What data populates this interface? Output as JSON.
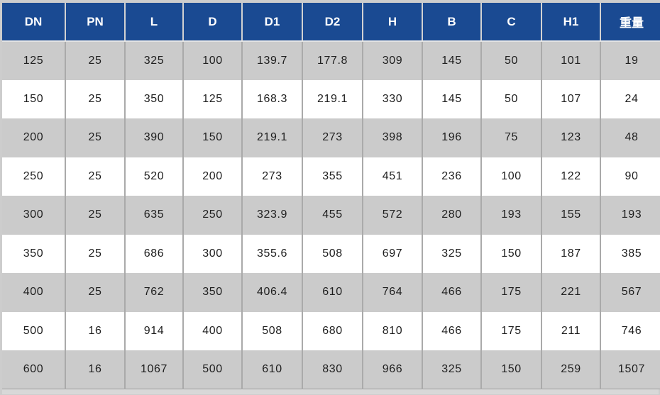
{
  "chart_data": {
    "type": "table",
    "title": "",
    "columns": [
      "DN",
      "PN",
      "L",
      "D",
      "D1",
      "D2",
      "H",
      "B",
      "C",
      "H1",
      "重量"
    ],
    "column_keys": [
      "dn",
      "pn",
      "l",
      "d",
      "d1",
      "d2",
      "h",
      "b",
      "c",
      "h1",
      "weight"
    ],
    "rows": [
      [
        "125",
        "25",
        "325",
        "100",
        "139.7",
        "177.8",
        "309",
        "145",
        "50",
        "101",
        "19"
      ],
      [
        "150",
        "25",
        "350",
        "125",
        "168.3",
        "219.1",
        "330",
        "145",
        "50",
        "107",
        "24"
      ],
      [
        "200",
        "25",
        "390",
        "150",
        "219.1",
        "273",
        "398",
        "196",
        "75",
        "123",
        "48"
      ],
      [
        "250",
        "25",
        "520",
        "200",
        "273",
        "355",
        "451",
        "236",
        "100",
        "122",
        "90"
      ],
      [
        "300",
        "25",
        "635",
        "250",
        "323.9",
        "455",
        "572",
        "280",
        "193",
        "155",
        "193"
      ],
      [
        "350",
        "25",
        "686",
        "300",
        "355.6",
        "508",
        "697",
        "325",
        "150",
        "187",
        "385"
      ],
      [
        "400",
        "25",
        "762",
        "350",
        "406.4",
        "610",
        "764",
        "466",
        "175",
        "221",
        "567"
      ],
      [
        "500",
        "16",
        "914",
        "400",
        "508",
        "680",
        "810",
        "466",
        "175",
        "211",
        "746"
      ],
      [
        "600",
        "16",
        "1067",
        "500",
        "610",
        "830",
        "966",
        "325",
        "150",
        "259",
        "1507"
      ]
    ],
    "layout_hints": {
      "striped": "odd rows gray, even rows white",
      "header_position": "top",
      "grid": "vertical separators only"
    }
  },
  "colors": {
    "header_bg": "#1a4a92",
    "header_text": "#ffffff",
    "row_alt_bg": "#cbcbcb",
    "row_bg": "#ffffff",
    "cell_text": "#1e1e1e",
    "grid_line": "#aaaaaa",
    "frame": "#cdcdcd"
  }
}
